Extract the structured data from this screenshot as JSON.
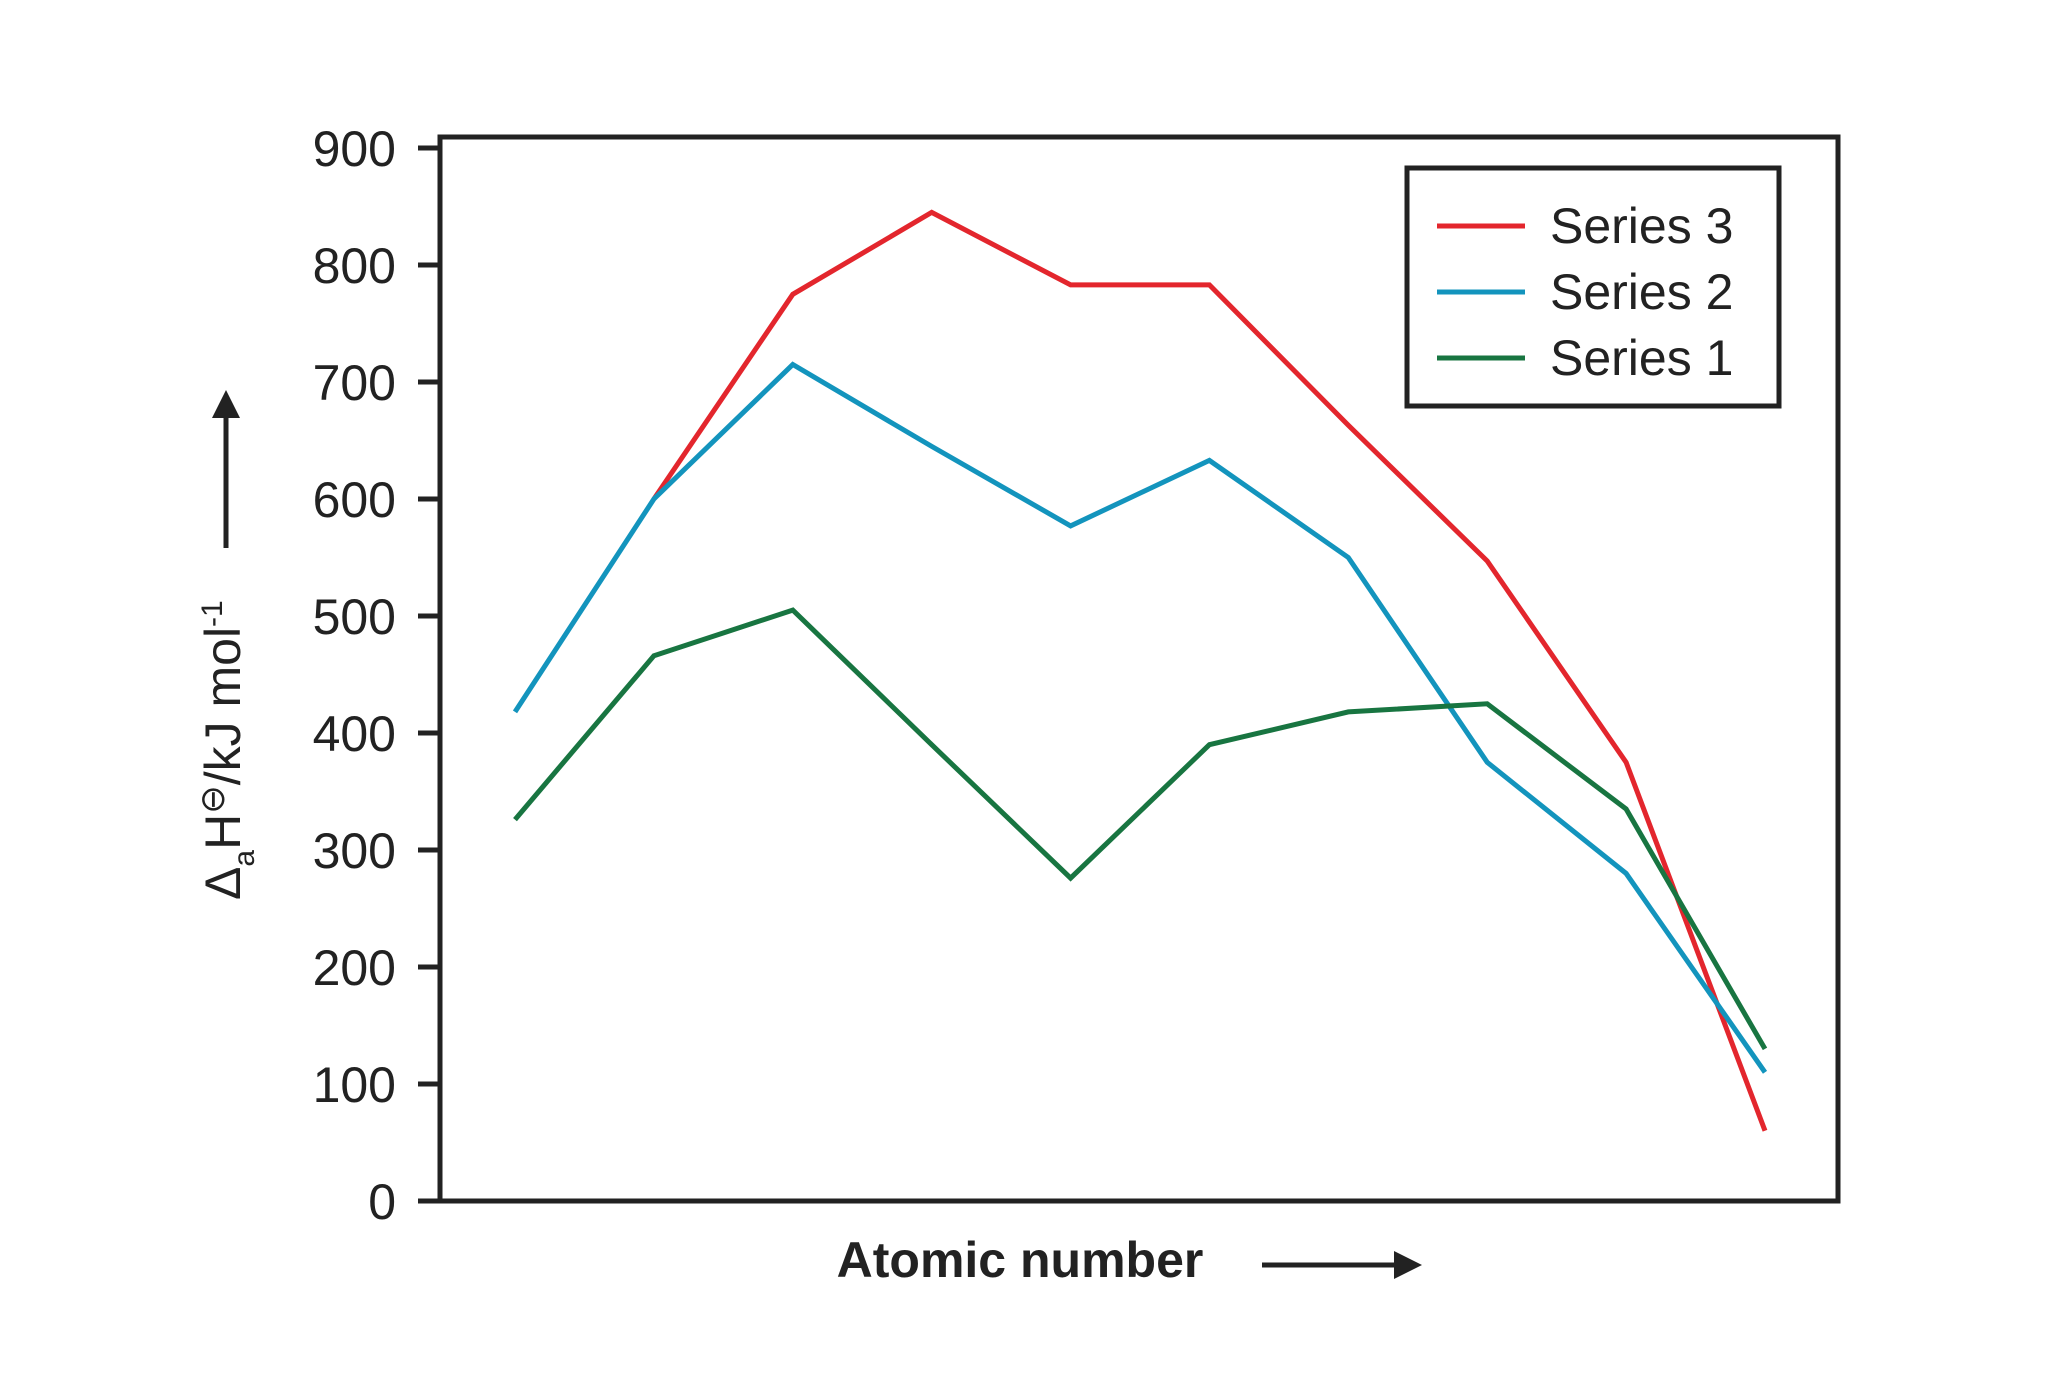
{
  "chart_data": {
    "type": "line",
    "title": "",
    "xlabel": "Atomic number",
    "ylabel": {
      "delta": "Δ",
      "sub": "a",
      "main": "H",
      "sup": "⊖",
      "unit": "/kJ mol",
      "unit_sup": "-1"
    },
    "ylim": [
      0,
      900
    ],
    "yticks": [
      0,
      100,
      200,
      300,
      400,
      500,
      600,
      700,
      800,
      900
    ],
    "grid": false,
    "legend_position": "top-right",
    "x": [
      1,
      2,
      3,
      4,
      5,
      6,
      7,
      8,
      9,
      10
    ],
    "series": [
      {
        "name": "Series 3",
        "color": "#e3262d",
        "values": [
          null,
          600,
          775,
          845,
          783,
          783,
          663,
          547,
          375,
          60
        ]
      },
      {
        "name": "Series 2",
        "color": "#1394bd",
        "values": [
          418,
          600,
          715,
          645,
          577,
          633,
          550,
          375,
          280,
          110
        ]
      },
      {
        "name": "Series 1",
        "color": "#187541",
        "values": [
          326,
          466,
          505,
          390,
          276,
          390,
          418,
          425,
          335,
          130
        ]
      }
    ]
  }
}
